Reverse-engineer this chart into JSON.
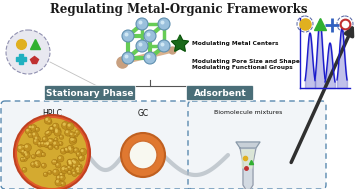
{
  "title": "Regulating Metal-Organic Frameworks",
  "title_fontsize": 8.5,
  "bg_color": "#ffffff",
  "labels": {
    "modulating1": "Modulating Metal Centers",
    "modulating2": "Modulating Pore Size and Shape",
    "modulating3": "Modulating Functional Groups",
    "stationary": "Stationary Phase",
    "adsorbent": "Adsorbent",
    "hplc": "HPLC",
    "gc": "GC",
    "biomolecule": "Biomolecule mixtures"
  },
  "colors": {
    "mof_node": "#7ab0d4",
    "mof_linker_green": "#66cc55",
    "mof_linker_tan": "#d4a57a",
    "box_bg": "#4a6e78",
    "box_text": "#ffffff",
    "dashed_border": "#5a8ab0",
    "hplc_outer": "#e05a2a",
    "hplc_fill": "#d4aa30",
    "gc_outer": "#e07830",
    "gc_inner": "#ffffff",
    "peak_blue": "#1a1acc",
    "star_green": "#1a6a1a",
    "circle_bg": "#e8e8f0",
    "symbol_yellow": "#e0b020",
    "symbol_green": "#30b030",
    "symbol_red": "#c03030",
    "symbol_blue": "#3060c0",
    "gray_curve": "#b0b8c0"
  }
}
